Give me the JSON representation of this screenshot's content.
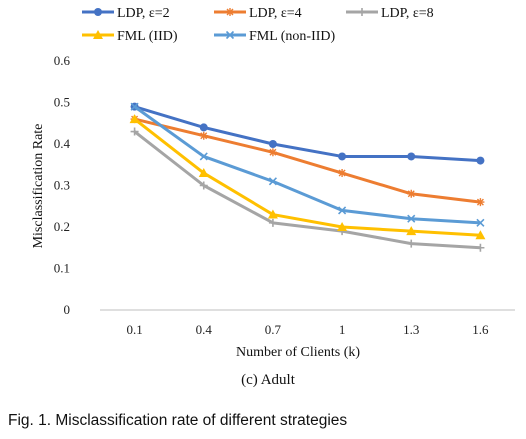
{
  "chart_data": {
    "type": "line",
    "xlabel": "Number of Clients (k)",
    "ylabel": "Misclassification Rate",
    "subtitle": "(c) Adult",
    "categories": [
      "0.1",
      "0.4",
      "0.7",
      "1",
      "1.3",
      "1.6"
    ],
    "ylim": [
      0,
      0.6
    ],
    "yticks": [
      "0",
      "0.1",
      "0.2",
      "0.3",
      "0.4",
      "0.5",
      "0.6"
    ],
    "grid": false,
    "legend_position": "top",
    "series": [
      {
        "name": "LDP, ε=2",
        "color": "#4472C4",
        "marker": "circle",
        "values": [
          0.49,
          0.44,
          0.4,
          0.37,
          0.37,
          0.36
        ]
      },
      {
        "name": "LDP, ε=4",
        "color": "#ED7D31",
        "marker": "star",
        "values": [
          0.46,
          0.42,
          0.38,
          0.33,
          0.28,
          0.26
        ]
      },
      {
        "name": "LDP, ε=8",
        "color": "#A5A5A5",
        "marker": "plus",
        "values": [
          0.43,
          0.3,
          0.21,
          0.19,
          0.16,
          0.15
        ]
      },
      {
        "name": "FML (IID)",
        "color": "#FFC000",
        "marker": "triangle",
        "values": [
          0.46,
          0.33,
          0.23,
          0.2,
          0.19,
          0.18
        ]
      },
      {
        "name": "FML (non-IID)",
        "color": "#5B9BD5",
        "marker": "x",
        "values": [
          0.49,
          0.37,
          0.31,
          0.24,
          0.22,
          0.21
        ]
      }
    ]
  },
  "figure_caption": "Fig. 1. Misclassification rate of different strategies"
}
